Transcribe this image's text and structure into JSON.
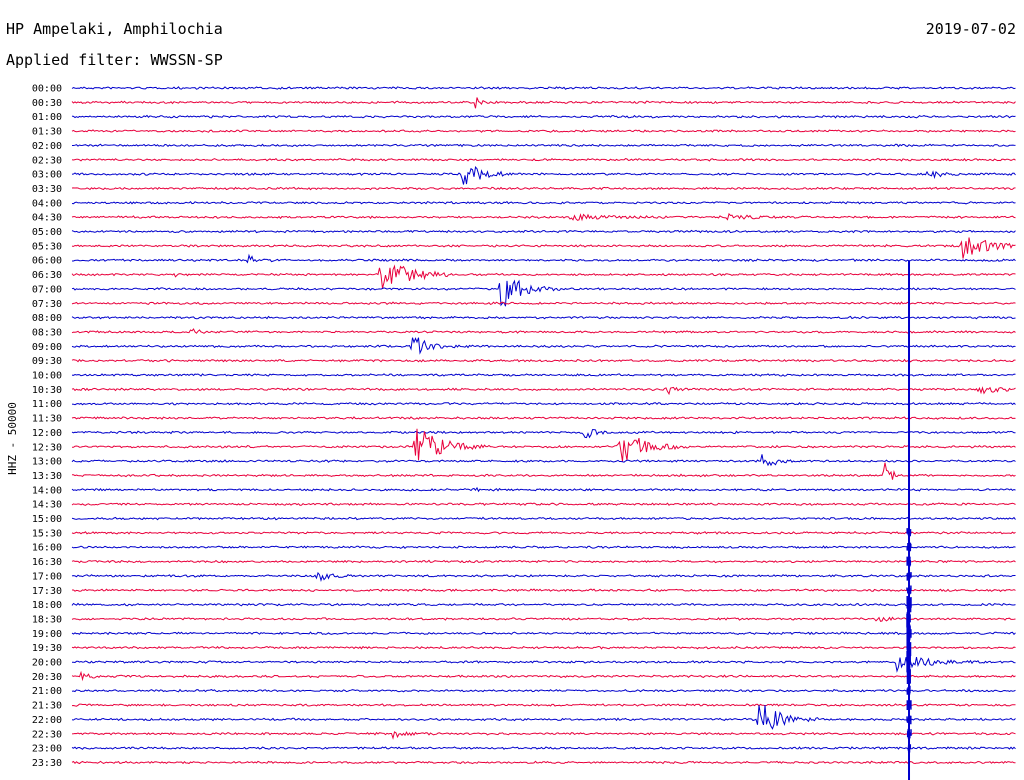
{
  "header": {
    "station": "HP Ampelaki, Amphilochia",
    "date": "2019-07-02",
    "filter": "Applied filter: WWSSN-SP"
  },
  "chart_data": {
    "type": "line",
    "title": "HP Ampelaki, Amphilochia",
    "subtitle": "Applied filter: WWSSN-SP",
    "date": "2019-07-02",
    "ylabel": "HHZ - 50000",
    "row_minutes": 30,
    "colors": [
      "#0000cc",
      "#e8003c"
    ],
    "rows": [
      "00:00",
      "00:30",
      "01:00",
      "01:30",
      "02:00",
      "02:30",
      "03:00",
      "03:30",
      "04:00",
      "04:30",
      "05:00",
      "05:30",
      "06:00",
      "06:30",
      "07:00",
      "07:30",
      "08:00",
      "08:30",
      "09:00",
      "09:30",
      "10:00",
      "10:30",
      "11:00",
      "11:30",
      "12:00",
      "12:30",
      "13:00",
      "13:30",
      "14:00",
      "14:30",
      "15:00",
      "15:30",
      "16:00",
      "16:30",
      "17:00",
      "17:30",
      "18:00",
      "18:30",
      "19:00",
      "19:30",
      "20:00",
      "20:30",
      "21:00",
      "21:30",
      "22:00",
      "22:30",
      "23:00",
      "23:30"
    ],
    "events": [
      {
        "row": 1,
        "minute": 12.8,
        "amp": 6,
        "dur": 0.5
      },
      {
        "row": 6,
        "minute": 12.4,
        "amp": 14,
        "dur": 1.2
      },
      {
        "row": 6,
        "minute": 27.2,
        "amp": 7,
        "dur": 0.6
      },
      {
        "row": 9,
        "minute": 15.8,
        "amp": 4,
        "dur": 2.2
      },
      {
        "row": 9,
        "minute": 20.6,
        "amp": 3,
        "dur": 2.0
      },
      {
        "row": 11,
        "minute": 28.3,
        "amp": 13,
        "dur": 1.6
      },
      {
        "row": 12,
        "minute": 5.6,
        "amp": 5,
        "dur": 0.6
      },
      {
        "row": 13,
        "minute": 9.8,
        "amp": 28,
        "dur": 1.4
      },
      {
        "row": 13,
        "minute": 3.3,
        "amp": 7,
        "dur": 0.1
      },
      {
        "row": 14,
        "minute": 13.6,
        "amp": 24,
        "dur": 1.2
      },
      {
        "row": 17,
        "minute": 3.8,
        "amp": 4,
        "dur": 0.5
      },
      {
        "row": 18,
        "minute": 10.8,
        "amp": 14,
        "dur": 1.0
      },
      {
        "row": 21,
        "minute": 18.9,
        "amp": 8,
        "dur": 0.4
      },
      {
        "row": 21,
        "minute": 28.8,
        "amp": 5,
        "dur": 1.2
      },
      {
        "row": 24,
        "minute": 16.3,
        "amp": 7,
        "dur": 0.6
      },
      {
        "row": 25,
        "minute": 10.9,
        "amp": 24,
        "dur": 1.6
      },
      {
        "row": 25,
        "minute": 17.4,
        "amp": 22,
        "dur": 1.4
      },
      {
        "row": 26,
        "minute": 21.8,
        "amp": 10,
        "dur": 0.9
      },
      {
        "row": 27,
        "minute": 25.8,
        "amp": 16,
        "dur": 0.5
      },
      {
        "row": 28,
        "minute": 12.8,
        "amp": 4,
        "dur": 0.1
      },
      {
        "row": 34,
        "minute": 7.7,
        "amp": 6,
        "dur": 1.0
      },
      {
        "row": 37,
        "minute": 25.6,
        "amp": 5,
        "dur": 0.5
      },
      {
        "row": 40,
        "minute": 26.2,
        "amp": 10,
        "dur": 1.8
      },
      {
        "row": 41,
        "minute": 0.3,
        "amp": 10,
        "dur": 0.4
      },
      {
        "row": 44,
        "minute": 21.8,
        "amp": 22,
        "dur": 1.2
      },
      {
        "row": 45,
        "minute": 10.2,
        "amp": 4,
        "dur": 0.8
      }
    ],
    "major_event": {
      "start_row": 12,
      "end_row": 47,
      "minute": 26.6
    }
  }
}
